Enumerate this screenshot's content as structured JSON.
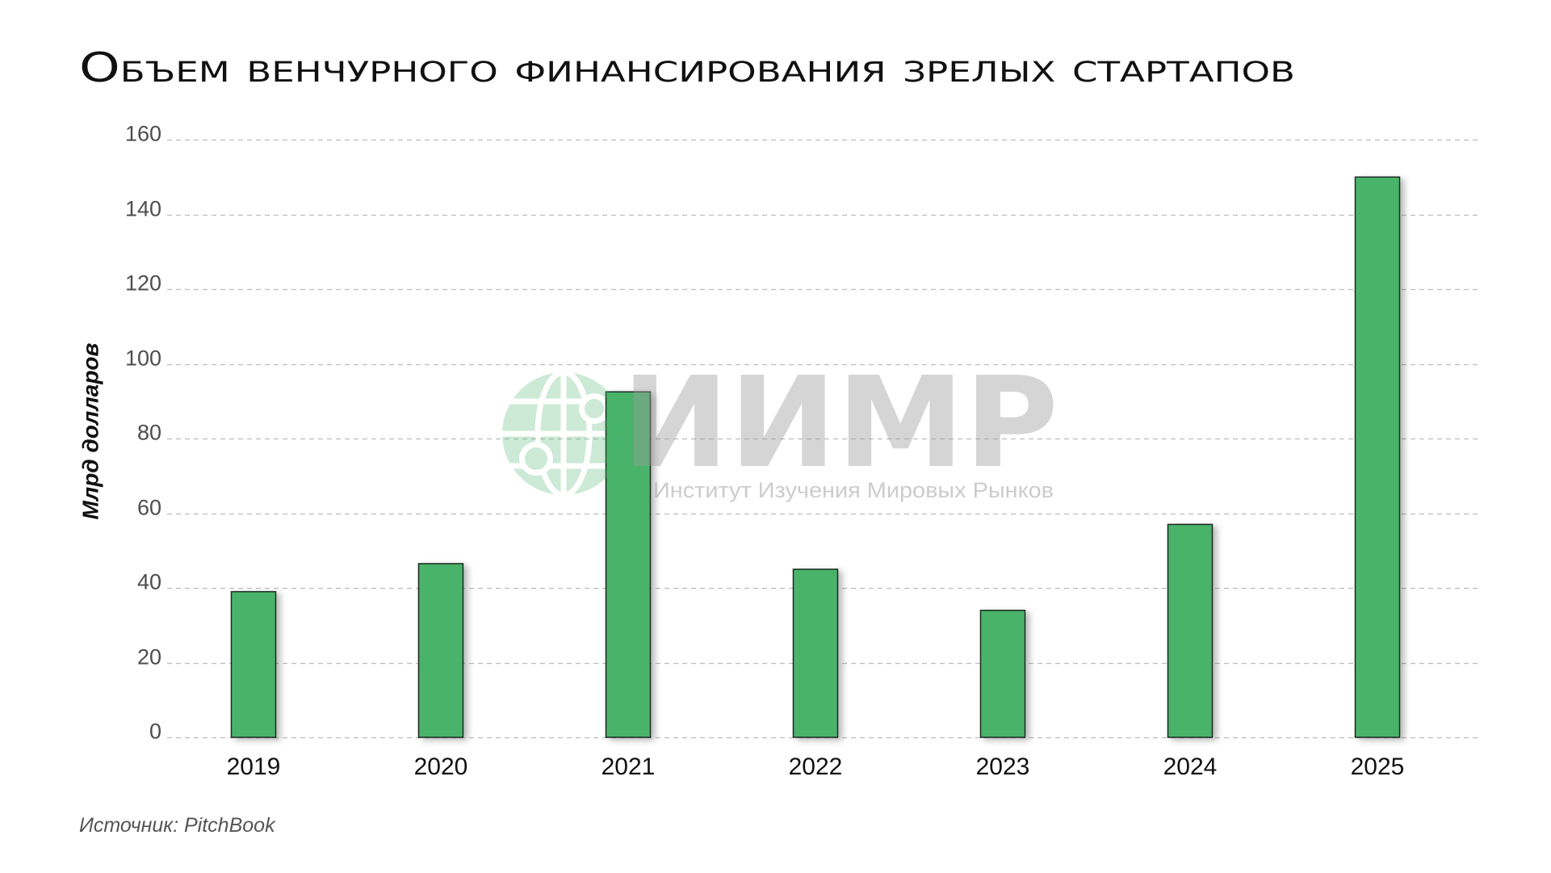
{
  "source": "Источник: PitchBook",
  "watermark": {
    "logo_text": "ИИМР",
    "logo_subtitle": "Институт Изучения Мировых Рынков",
    "icon": "globe-icon"
  },
  "colors": {
    "background": "#ffffff",
    "bar": "#48b36b",
    "bar_border": "#1d2b21",
    "grid": "#bdbdbd",
    "text": "#111111",
    "muted_text": "#4d4d4d",
    "source_text": "#555555",
    "watermark_text": "#9a9a9a",
    "watermark_icon": "#47b36b"
  },
  "chart_data": {
    "type": "bar",
    "title": "Объем венчурного финансирования зрелых стартапов",
    "xlabel": "",
    "ylabel": "Млрд долларов",
    "categories": [
      "2019",
      "2020",
      "2021",
      "2022",
      "2023",
      "2024",
      "2025"
    ],
    "values": [
      39,
      46.5,
      92.5,
      45,
      34,
      57,
      150
    ],
    "ylim": [
      0,
      160
    ],
    "yticks": [
      0,
      20,
      40,
      60,
      80,
      100,
      120,
      140,
      160
    ],
    "grid": true
  }
}
